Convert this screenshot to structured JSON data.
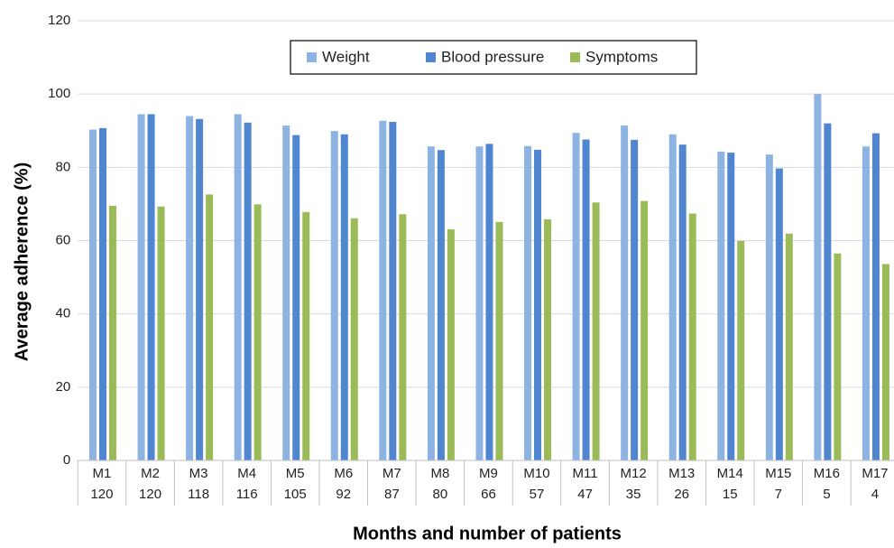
{
  "chart_data": {
    "type": "bar",
    "x_label": "Months and number of patients",
    "y_label": "Average adherence (%)",
    "categories": [
      "M1",
      "M2",
      "M3",
      "M4",
      "M5",
      "M6",
      "M7",
      "M8",
      "M9",
      "M10",
      "M11",
      "M12",
      "M13",
      "M14",
      "M15",
      "M16",
      "M17"
    ],
    "patients": [
      120,
      120,
      118,
      116,
      105,
      92,
      87,
      80,
      66,
      57,
      47,
      35,
      26,
      15,
      7,
      5,
      4
    ],
    "series": [
      {
        "name": "Weight",
        "color": "#8db3e2",
        "values": [
          90.3,
          94.5,
          94,
          94.5,
          91.4,
          89.9,
          92.7,
          85.7,
          85.7,
          85.8,
          89.4,
          91.4,
          89,
          84.3,
          83.5,
          100,
          85.7
        ]
      },
      {
        "name": "Blood pressure",
        "color": "#4f86cf",
        "values": [
          90.7,
          94.5,
          93.2,
          92.2,
          88.8,
          89,
          92.4,
          84.7,
          86.4,
          84.8,
          87.6,
          87.5,
          86.2,
          84,
          79.7,
          92,
          89.3
        ]
      },
      {
        "name": "Symptoms",
        "color": "#9bbb59",
        "values": [
          69.5,
          69.3,
          72.6,
          69.9,
          67.8,
          66.1,
          67.2,
          63.1,
          65.1,
          65.8,
          70.4,
          70.8,
          67.4,
          59.9,
          61.9,
          56.5,
          53.6
        ]
      }
    ],
    "ylim": [
      0,
      120
    ],
    "yticks": [
      0,
      20,
      40,
      60,
      80,
      100,
      120
    ],
    "grid": true,
    "legend": "top-center"
  }
}
